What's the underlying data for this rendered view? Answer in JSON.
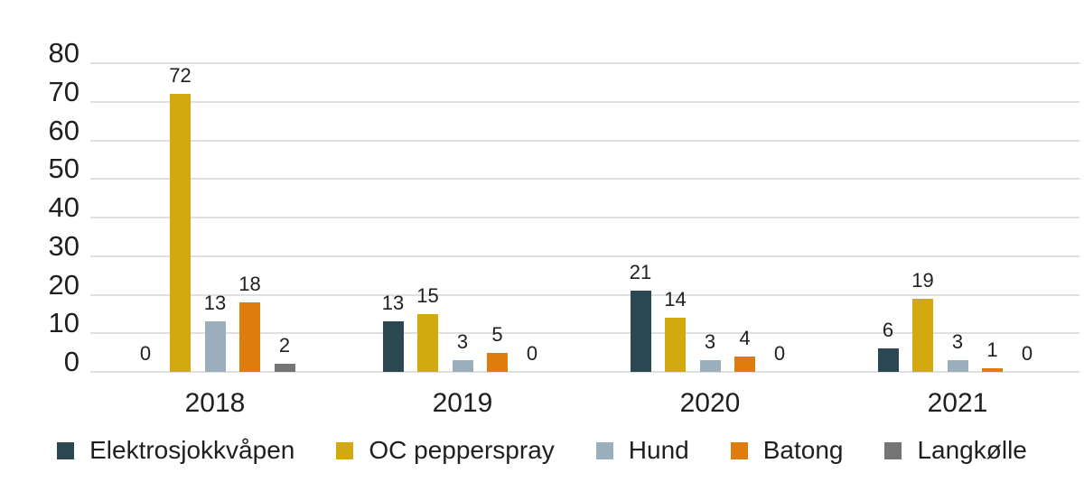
{
  "chart_data": {
    "type": "bar",
    "title": "",
    "xlabel": "",
    "ylabel": "",
    "categories": [
      "2018",
      "2019",
      "2020",
      "2021"
    ],
    "series": [
      {
        "name": "Elektrosjokkvåpen",
        "color": "#2A4752",
        "values": [
          0,
          13,
          21,
          6
        ]
      },
      {
        "name": "OC pepperspray",
        "color": "#D2A90E",
        "values": [
          72,
          15,
          14,
          19
        ]
      },
      {
        "name": "Hund",
        "color": "#9AAEBB",
        "values": [
          13,
          3,
          3,
          3
        ]
      },
      {
        "name": "Batong",
        "color": "#DE7C0E",
        "values": [
          18,
          5,
          4,
          1
        ]
      },
      {
        "name": "Langkølle",
        "color": "#757575",
        "values": [
          2,
          0,
          0,
          0
        ]
      }
    ],
    "ylim": [
      0,
      80
    ],
    "yticks": [
      0,
      10,
      20,
      30,
      40,
      50,
      60,
      70,
      80
    ],
    "value_labels": true,
    "grid": true,
    "legend_position": "bottom"
  },
  "colors": {
    "background": "#FFFFFF",
    "text": "#1F1F1F",
    "gridline": "#E0E0E0"
  }
}
